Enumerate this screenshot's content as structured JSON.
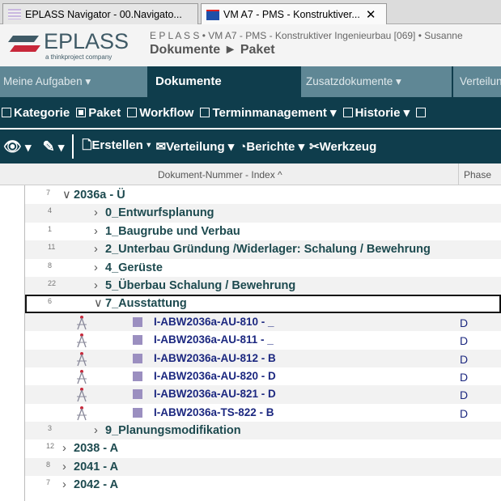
{
  "browser_tabs": [
    {
      "title": "EPLASS Navigator - 00.Navigato...",
      "active": false
    },
    {
      "title": "VM A7 - PMS - Konstruktiver...",
      "active": true
    }
  ],
  "logo": {
    "name": "EPLASS",
    "tagline": "a thinkproject company"
  },
  "header": {
    "context": "E P L A S S • VM A7 - PMS - Konstruktiver Ingenieurbau [069] • Susanne",
    "breadcrumb": "Dokumente ► Paket"
  },
  "nav": [
    {
      "label": "Meine Aufgaben ▾"
    },
    {
      "label": "Dokumente",
      "active": true
    },
    {
      "label": "Zusatzdokumente ▾"
    },
    {
      "label": "Verteilung"
    }
  ],
  "filters": [
    {
      "label": "Kategorie",
      "checked": false
    },
    {
      "label": "Paket",
      "checked": true
    },
    {
      "label": "Workflow",
      "checked": false
    },
    {
      "label": "Terminmanagement ▾",
      "checked": false
    },
    {
      "label": "Historie ▾",
      "checked": false
    }
  ],
  "toolbar": {
    "view": "▾",
    "mark": "▾",
    "create": "Erstellen ▾",
    "distribution": "Verteilung ▾",
    "reports": "Berichte ▾",
    "tools": "Werkzeug"
  },
  "columns": {
    "doc_number": "Dokument-Nummer - Index ^",
    "phase": "Phase"
  },
  "colors": {
    "dark": "#0f3d4c",
    "nav": "#5f8795",
    "folder_text": "#1d4a4f",
    "doc_text": "#1c2880"
  },
  "rows": [
    {
      "count": "7",
      "label": "2036a - Ü",
      "level": 0,
      "expanded": true
    },
    {
      "count": "4",
      "label": "0_Entwurfsplanung",
      "level": 1
    },
    {
      "count": "1",
      "label": "1_Baugrube und Verbau",
      "level": 1
    },
    {
      "count": "11",
      "label": "2_Unterbau Gründung /Widerlager: Schalung / Bewehrung",
      "level": 1
    },
    {
      "count": "8",
      "label": "4_Gerüste",
      "level": 1
    },
    {
      "count": "22",
      "label": "5_Überbau Schalung / Bewehrung",
      "level": 1
    },
    {
      "count": "6",
      "label": "7_Ausstattung",
      "level": 1,
      "expanded": true,
      "selected": true
    },
    {
      "label": "I-ABW2036a-AU-810 - _",
      "phase": "D",
      "doc": true
    },
    {
      "label": "I-ABW2036a-AU-811 - _",
      "phase": "D",
      "doc": true
    },
    {
      "label": "I-ABW2036a-AU-812 - B",
      "phase": "D",
      "doc": true
    },
    {
      "label": "I-ABW2036a-AU-820 - D",
      "phase": "D",
      "doc": true
    },
    {
      "label": "I-ABW2036a-AU-821 - D",
      "phase": "D",
      "doc": true
    },
    {
      "label": "I-ABW2036a-TS-822 - B",
      "phase": "D",
      "doc": true
    },
    {
      "count": "3",
      "label": "9_Planungsmodifikation",
      "level": 1
    },
    {
      "count": "12",
      "label": "2038 - A",
      "level": 0
    },
    {
      "count": "8",
      "label": "2041 - A",
      "level": 0
    },
    {
      "count": "7",
      "label": "2042 - A",
      "level": 0
    }
  ]
}
